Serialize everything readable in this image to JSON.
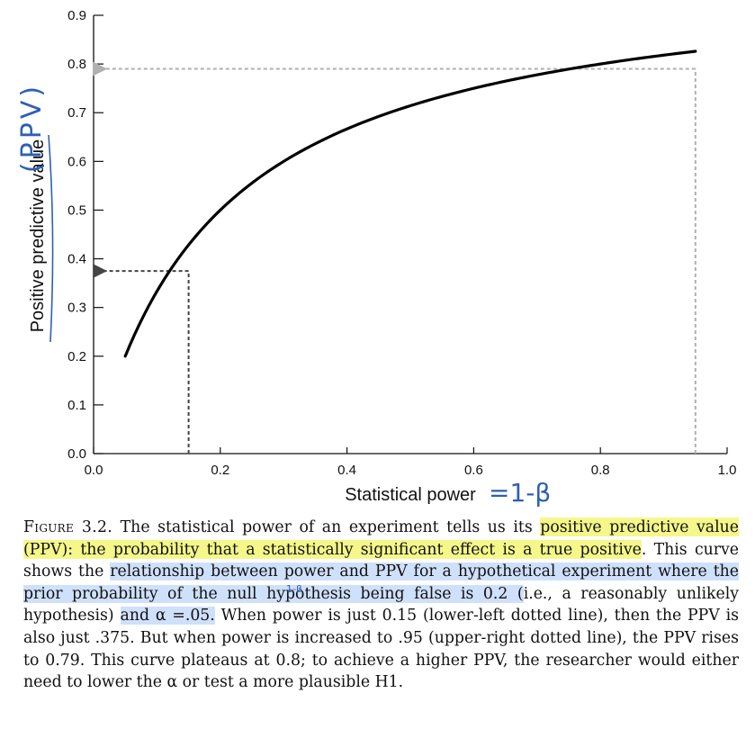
{
  "chart_data": {
    "type": "line",
    "xlabel": "Statistical power",
    "ylabel": "Positive predictive value",
    "xlim": [
      0.0,
      1.0
    ],
    "ylim": [
      0.0,
      0.9
    ],
    "x_ticks": [
      "0.0",
      "0.2",
      "0.4",
      "0.6",
      "0.8",
      "1.0"
    ],
    "y_ticks": [
      "0.0",
      "0.1",
      "0.2",
      "0.3",
      "0.4",
      "0.5",
      "0.6",
      "0.7",
      "0.8",
      "0.9"
    ],
    "curve": {
      "x_start": 0.05,
      "x_end": 0.95,
      "points": [
        [
          0.05,
          0.167
        ],
        [
          0.1,
          0.286
        ],
        [
          0.15,
          0.375
        ],
        [
          0.2,
          0.444
        ],
        [
          0.25,
          0.5
        ],
        [
          0.3,
          0.545
        ],
        [
          0.35,
          0.583
        ],
        [
          0.4,
          0.615
        ],
        [
          0.45,
          0.643
        ],
        [
          0.5,
          0.667
        ],
        [
          0.55,
          0.688
        ],
        [
          0.6,
          0.706
        ],
        [
          0.65,
          0.722
        ],
        [
          0.7,
          0.737
        ],
        [
          0.75,
          0.75
        ],
        [
          0.8,
          0.762
        ],
        [
          0.85,
          0.773
        ],
        [
          0.9,
          0.783
        ],
        [
          0.95,
          0.792
        ]
      ]
    },
    "reference_lines": [
      {
        "name": "lower-left",
        "x": 0.15,
        "y": 0.375,
        "color": "#444444"
      },
      {
        "name": "upper-right",
        "x": 0.95,
        "y": 0.79,
        "color": "#b0b0b0"
      }
    ],
    "grid": false,
    "legend": "none"
  },
  "annotations": {
    "ylabel_handwritten": "(PPV)",
    "xlabel_handwritten": "=1-β",
    "beta_handwritten": "1-β",
    "ink_color": "#2f5fb3"
  },
  "caption": {
    "figure_label": "Figure 3.2.",
    "s1": "The statistical power of an experiment tells us its",
    "s2": "positive predictive value (PPV): the probability that a statistically significant effect is a true positive",
    "s3": ". This curve shows the",
    "s4": "relationship between power and PPV for a hypothetical experiment where the prior probability of the null hypothesis being false is 0.2 (",
    "s5": "i.e., a reasonably unlikely hypothesis)",
    "s6": "and α =.05.",
    "s7": "When power is just 0.15 (lower-left dotted line), then the PPV is also just .375. But when power is increased to .95 (upper-right dotted line), the PPV rises to 0.79. This curve plateaus at 0.8; to achieve a higher PPV, the researcher would either need to lower the α or test a more plausible H1."
  }
}
